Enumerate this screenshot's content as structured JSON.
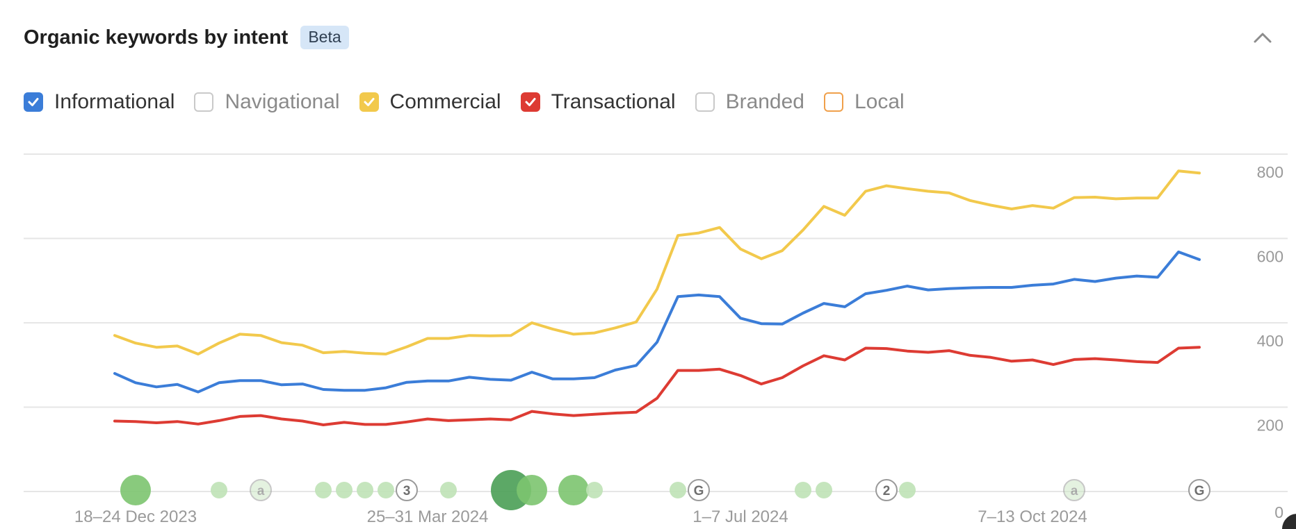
{
  "header": {
    "title": "Organic keywords by intent",
    "badge": "Beta",
    "collapse_icon": "chevron-up-icon"
  },
  "legend": [
    {
      "id": "informational",
      "label": "Informational",
      "checked": true,
      "color": "#3b7dd8"
    },
    {
      "id": "navigational",
      "label": "Navigational",
      "checked": false,
      "color": "#c9c9c9"
    },
    {
      "id": "commercial",
      "label": "Commercial",
      "checked": true,
      "color": "#f2c94c"
    },
    {
      "id": "transactional",
      "label": "Transactional",
      "checked": true,
      "color": "#dd3b33"
    },
    {
      "id": "branded",
      "label": "Branded",
      "checked": false,
      "color": "#c9c9c9"
    },
    {
      "id": "local",
      "label": "Local",
      "checked": false,
      "color": "#f0a04b"
    }
  ],
  "chart_data": {
    "type": "line",
    "x_tick_labels": [
      "18–24 Dec 2023",
      "25–31 Mar 2024",
      "1–7 Jul 2024",
      "7–13 Oct 2024"
    ],
    "x_tick_indices": [
      1,
      15,
      30,
      44
    ],
    "ylim": [
      0,
      800
    ],
    "y_ticks": [
      {
        "value": 800,
        "label": "800"
      },
      {
        "value": 600,
        "label": "600"
      },
      {
        "value": 400,
        "label": "400"
      },
      {
        "value": 200,
        "label": "200"
      },
      {
        "value": 0,
        "label": "0"
      }
    ],
    "grid": true,
    "series": [
      {
        "name": "Commercial",
        "color": "#f2c94c",
        "values": [
          370,
          352,
          342,
          345,
          326,
          352,
          373,
          370,
          353,
          347,
          329,
          332,
          328,
          326,
          343,
          363,
          363,
          370,
          369,
          370,
          400,
          385,
          373,
          376,
          388,
          402,
          480,
          607,
          613,
          626,
          575,
          552,
          571,
          620,
          676,
          655,
          712,
          725,
          718,
          712,
          708,
          690,
          679,
          670,
          678,
          672,
          697,
          698,
          694,
          696,
          696,
          760,
          755
        ]
      },
      {
        "name": "Informational",
        "color": "#3b7dd8",
        "values": [
          280,
          258,
          248,
          254,
          236,
          258,
          263,
          263,
          253,
          255,
          242,
          240,
          240,
          246,
          259,
          262,
          262,
          271,
          266,
          264,
          283,
          267,
          267,
          270,
          288,
          299,
          354,
          462,
          466,
          462,
          411,
          398,
          397,
          423,
          446,
          438,
          469,
          477,
          487,
          478,
          481,
          483,
          484,
          484,
          489,
          492,
          503,
          498,
          506,
          511,
          508,
          568,
          550
        ]
      },
      {
        "name": "Transactional",
        "color": "#dd3b33",
        "values": [
          167,
          166,
          163,
          166,
          160,
          168,
          178,
          180,
          172,
          167,
          158,
          164,
          159,
          159,
          165,
          172,
          168,
          170,
          172,
          170,
          190,
          184,
          180,
          183,
          186,
          188,
          221,
          287,
          287,
          290,
          275,
          255,
          270,
          298,
          322,
          312,
          340,
          339,
          333,
          330,
          334,
          323,
          318,
          309,
          312,
          301,
          313,
          315,
          312,
          308,
          306,
          340,
          342
        ]
      }
    ],
    "annotations": [
      {
        "x": 1,
        "kind": "circle",
        "size": "large",
        "shade": "medium"
      },
      {
        "x": 5,
        "kind": "circle",
        "size": "small",
        "shade": "light"
      },
      {
        "x": 7,
        "kind": "marker",
        "label": "a",
        "faded": true
      },
      {
        "x": 10,
        "kind": "circle",
        "size": "small",
        "shade": "light"
      },
      {
        "x": 11,
        "kind": "circle",
        "size": "small",
        "shade": "light"
      },
      {
        "x": 12,
        "kind": "circle",
        "size": "small",
        "shade": "light"
      },
      {
        "x": 13,
        "kind": "circle",
        "size": "small",
        "shade": "light"
      },
      {
        "x": 14,
        "kind": "marker",
        "label": "3"
      },
      {
        "x": 16,
        "kind": "circle",
        "size": "small",
        "shade": "light"
      },
      {
        "x": 19,
        "kind": "circle",
        "size": "xlarge",
        "shade": "dark"
      },
      {
        "x": 20,
        "kind": "circle",
        "size": "large",
        "shade": "medium"
      },
      {
        "x": 22,
        "kind": "circle",
        "size": "large",
        "shade": "medium"
      },
      {
        "x": 23,
        "kind": "circle",
        "size": "small",
        "shade": "light"
      },
      {
        "x": 27,
        "kind": "circle",
        "size": "small",
        "shade": "light"
      },
      {
        "x": 28,
        "kind": "marker",
        "label": "G"
      },
      {
        "x": 33,
        "kind": "circle",
        "size": "small",
        "shade": "light"
      },
      {
        "x": 34,
        "kind": "circle",
        "size": "small",
        "shade": "light"
      },
      {
        "x": 37,
        "kind": "marker",
        "label": "2"
      },
      {
        "x": 38,
        "kind": "circle",
        "size": "small",
        "shade": "light"
      },
      {
        "x": 46,
        "kind": "marker",
        "label": "a",
        "faded": true
      },
      {
        "x": 52,
        "kind": "marker",
        "label": "G"
      }
    ]
  }
}
